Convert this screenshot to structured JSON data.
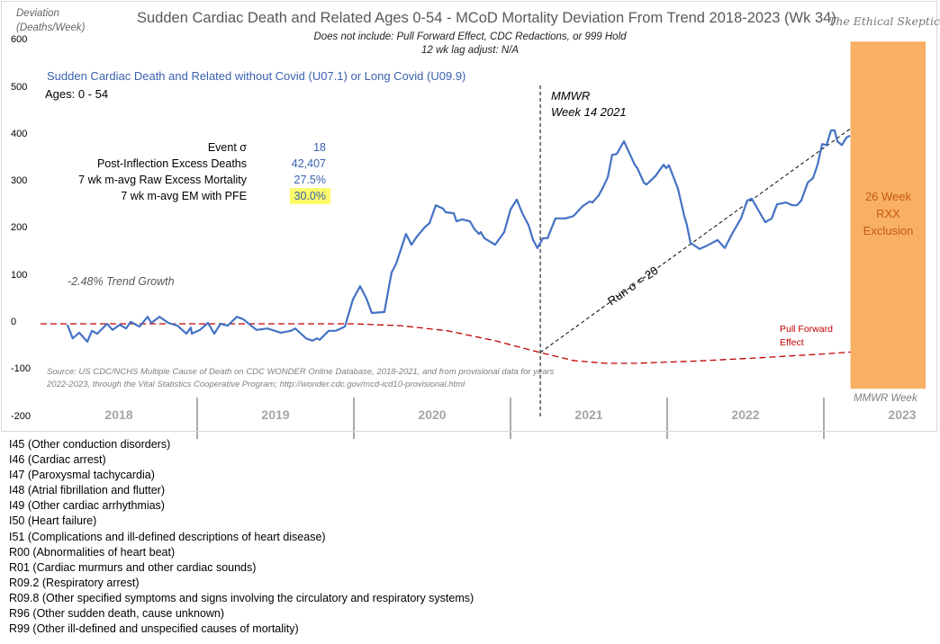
{
  "header": {
    "title": "Sudden Cardiac Death and Related Ages 0-54 - MCoD Mortality Deviation From Trend  2018-2023 (Wk 34)",
    "subtitle1": "Does not include: Pull Forward Effect,  CDC Redactions, or 999 Hold",
    "subtitle2": "12 wk lag adjust: N/A",
    "brand": "The Ethical Skeptic"
  },
  "series_title": "Sudden Cardiac Death and Related without Covid (U07.1) or Long Covid (U09.9)",
  "ages": "Ages: 0 - 54",
  "stats": [
    {
      "label": "Event σ",
      "value": "18"
    },
    {
      "label": "Post-Inflection Excess Deaths",
      "value": "42,407"
    },
    {
      "label": "7 wk m-avg Raw Excess Mortality",
      "value": "27.5%"
    },
    {
      "label": "7 wk m-avg EM  with PFE",
      "value": "30.0%"
    }
  ],
  "annotations": {
    "trend_growth": "-2.48% Trend Growth",
    "mmwr_line1": "MMWR",
    "mmwr_line2": "Week 14 2021",
    "run_sigma": "Run σ = 20",
    "pull_forward1": "Pull Forward",
    "pull_forward2": "Effect",
    "exclusion1": "26 Week",
    "exclusion2": "RXX",
    "exclusion3": "Exclusion",
    "source1": "Source: US CDC/NCHS Multiple Cause of Death on CDC WONDER Online Database, 2018-2021, and from provisional data for years",
    "source2": "2022-2023, through the Vital Statistics Cooperative Program; http://wonder.cdc.gov/mcd-icd10-provisional.html",
    "mmwr_week": "MMWR Week"
  },
  "codes": [
    "I45 (Other conduction  disorders)",
    "I46 (Cardiac arrest)",
    "I47 (Paroxysmal tachycardia)",
    "I48 (Atrial fibrillation and flutter)",
    "I49 (Other cardiac arrhythmias)",
    "I50 (Heart failure)",
    "I51 (Complications  and ill-defined  descriptions of heart disease)",
    "R00 (Abnormalities of heart beat)",
    "R01 (Cardiac murmurs and other cardiac sounds)",
    "R09.2 (Respiratory arrest)",
    "R09.8 (Other specified  symptoms and signs involving the circulatory and respiratory systems)",
    "R96 (Other sudden death, cause unknown)",
    "R99 (Other ill-defined  and unspecified causes of mortality)"
  ],
  "chart_data": {
    "type": "line",
    "title": "Sudden Cardiac Death and Related Ages 0-54 - MCoD Mortality Deviation From Trend  2018-2023 (Wk 34)",
    "ylabel": "Deviation (Deaths/Week)",
    "xlabel": "MMWR Week",
    "ylim": [
      -200,
      600
    ],
    "yticks": [
      "600",
      "500",
      "400",
      "300",
      "200",
      "100",
      "0",
      "-100",
      "-200"
    ],
    "ytick_values": [
      600,
      500,
      400,
      300,
      200,
      100,
      0,
      -100,
      -200
    ],
    "xlim": [
      2018,
      2023.7
    ],
    "xcategories": [
      "2018",
      "2019",
      "2020",
      "2021",
      "2022",
      "2023"
    ],
    "colors": {
      "series": "#4472c4",
      "trend": "#c00000",
      "run": "#000000",
      "exclusion": "#f8b064",
      "highlight": "#fbfb6a"
    },
    "series": [
      {
        "name": "Sudden Cardiac Death and Related without Covid (U07.1) or Long Covid (U09.9)",
        "x": [
          2018.172,
          2018.205,
          2018.247,
          2018.299,
          2018.328,
          2018.362,
          2018.425,
          2018.46,
          2018.506,
          2018.546,
          2018.575,
          2018.632,
          2018.684,
          2018.707,
          2018.759,
          2018.816,
          2018.874,
          2018.931,
          2018.96,
          2018.966,
          2019.017,
          2019.069,
          2019.109,
          2019.149,
          2019.195,
          2019.253,
          2019.293,
          2019.379,
          2019.448,
          2019.534,
          2019.598,
          2019.626,
          2019.695,
          2019.736,
          2019.764,
          2019.782,
          2019.839,
          2019.885,
          2019.943,
          2019.994,
          2020.04,
          2020.08,
          2020.115,
          2020.195,
          2020.241,
          2020.27,
          2020.333,
          2020.368,
          2020.402,
          2020.454,
          2020.483,
          2020.523,
          2020.569,
          2020.586,
          2020.638,
          2020.655,
          2020.69,
          2020.741,
          2020.77,
          2020.799,
          2020.81,
          2020.833,
          2020.902,
          2020.96,
          2021.0,
          2021.04,
          2021.075,
          2021.115,
          2021.144,
          2021.172,
          2021.207,
          2021.236,
          2021.287,
          2021.351,
          2021.402,
          2021.46,
          2021.506,
          2021.523,
          2021.563,
          2021.592,
          2021.621,
          2021.649,
          2021.678,
          2021.724,
          2021.753,
          2021.793,
          2021.81,
          2021.851,
          2021.868,
          2021.925,
          2021.977,
          2021.994,
          2022.011,
          2022.069,
          2022.109,
          2022.126,
          2022.149,
          2022.207,
          2022.253,
          2022.322,
          2022.368,
          2022.414,
          2022.471,
          2022.511,
          2022.54,
          2022.586,
          2022.626,
          2022.667,
          2022.701,
          2022.759,
          2022.799,
          2022.828,
          2022.856,
          2022.897,
          2022.931,
          2022.96,
          2022.989,
          2023.017,
          2023.046,
          2023.069,
          2023.086,
          2023.115,
          2023.144,
          2023.167
        ],
        "values": [
          -2,
          -31,
          -19,
          -38,
          -15,
          -21,
          0,
          -13,
          -2,
          -10,
          4,
          -6,
          15,
          2,
          15,
          2,
          -4,
          -21,
          -8,
          -21,
          -13,
          2,
          -21,
          0,
          -4,
          15,
          10,
          -13,
          -10,
          -19,
          -15,
          -10,
          -31,
          -36,
          -31,
          -34,
          -15,
          -15,
          -6,
          52,
          80,
          54,
          23,
          25,
          109,
          128,
          191,
          168,
          185,
          206,
          214,
          252,
          245,
          237,
          235,
          218,
          222,
          218,
          201,
          191,
          195,
          182,
          168,
          195,
          243,
          264,
          235,
          210,
          178,
          161,
          182,
          182,
          224,
          224,
          229,
          250,
          260,
          258,
          273,
          291,
          312,
          359,
          361,
          388,
          367,
          338,
          331,
          300,
          296,
          314,
          338,
          331,
          337,
          287,
          229,
          210,
          172,
          159,
          166,
          178,
          161,
          191,
          224,
          262,
          266,
          239,
          216,
          224,
          254,
          258,
          252,
          252,
          262,
          300,
          310,
          338,
          382,
          380,
          411,
          411,
          388,
          380,
          396,
          400
        ]
      },
      {
        "name": "Trend (Pull Forward Effect)",
        "x": [
          2018.0,
          2020.0,
          2020.3,
          2020.6,
          2020.9,
          2021.2,
          2021.4,
          2021.6,
          2021.8,
          2022.2,
          2022.6,
          2023.0,
          2023.17
        ],
        "values": [
          0,
          0,
          -4,
          -15,
          -36,
          -62,
          -78,
          -84,
          -84,
          -79,
          -72,
          -64,
          -60
        ]
      },
      {
        "name": "Run σ = 20",
        "x": [
          2021.19,
          2023.17
        ],
        "values": [
          -61,
          415
        ]
      }
    ],
    "vline": {
      "x": 2021.19,
      "label": "MMWR Week 14 2021"
    },
    "exclusion_band": {
      "x": [
        2023.17,
        2023.65
      ],
      "y": [
        -138,
        600
      ],
      "label": "26 Week RXX Exclusion"
    },
    "grid": false,
    "legend": "none"
  }
}
